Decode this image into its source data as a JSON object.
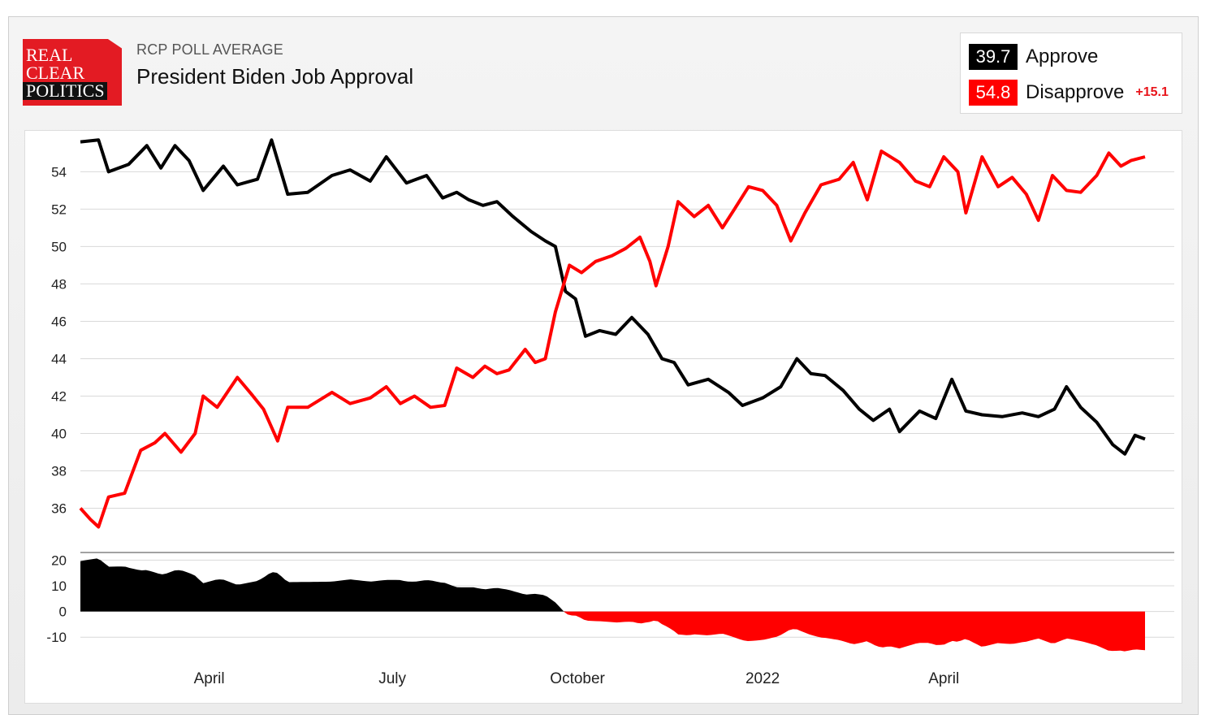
{
  "header": {
    "logo_lines": [
      "REAL",
      "CLEAR",
      "POLITICS"
    ],
    "subtitle": "RCP POLL AVERAGE",
    "title": "President Biden Job Approval"
  },
  "legend": {
    "approve": {
      "value": "39.7",
      "label": "Approve",
      "color": "#000000"
    },
    "disapprove": {
      "value": "54.8",
      "label": "Disapprove",
      "color": "#ff0000"
    },
    "spread": "+15.1"
  },
  "chart_data": [
    {
      "type": "line",
      "x_unit": "date",
      "x_range": [
        "2021-01-27",
        "2022-07-10"
      ],
      "ylim": [
        34.5,
        55.8
      ],
      "yticks": [
        36,
        38,
        40,
        42,
        44,
        46,
        48,
        50,
        52,
        54
      ],
      "grid": true,
      "series": [
        {
          "name": "Approve",
          "color": "#000000",
          "points": [
            [
              "2021-01-27",
              55.6
            ],
            [
              "2021-02-05",
              55.7
            ],
            [
              "2021-02-10",
              54.0
            ],
            [
              "2021-02-20",
              54.4
            ],
            [
              "2021-03-01",
              55.4
            ],
            [
              "2021-03-08",
              54.2
            ],
            [
              "2021-03-15",
              55.4
            ],
            [
              "2021-03-22",
              54.6
            ],
            [
              "2021-03-29",
              53.0
            ],
            [
              "2021-04-08",
              54.3
            ],
            [
              "2021-04-15",
              53.3
            ],
            [
              "2021-04-25",
              53.6
            ],
            [
              "2021-05-02",
              55.7
            ],
            [
              "2021-05-10",
              52.8
            ],
            [
              "2021-05-20",
              52.9
            ],
            [
              "2021-06-01",
              53.8
            ],
            [
              "2021-06-10",
              54.1
            ],
            [
              "2021-06-20",
              53.5
            ],
            [
              "2021-06-28",
              54.8
            ],
            [
              "2021-07-08",
              53.4
            ],
            [
              "2021-07-18",
              53.8
            ],
            [
              "2021-07-26",
              52.6
            ],
            [
              "2021-08-02",
              52.9
            ],
            [
              "2021-08-08",
              52.5
            ],
            [
              "2021-08-15",
              52.2
            ],
            [
              "2021-08-22",
              52.4
            ],
            [
              "2021-08-30",
              51.6
            ],
            [
              "2021-09-08",
              50.8
            ],
            [
              "2021-09-15",
              50.3
            ],
            [
              "2021-09-20",
              50.0
            ],
            [
              "2021-09-25",
              47.6
            ],
            [
              "2021-09-30",
              47.2
            ],
            [
              "2021-10-05",
              45.2
            ],
            [
              "2021-10-12",
              45.5
            ],
            [
              "2021-10-20",
              45.3
            ],
            [
              "2021-10-28",
              46.2
            ],
            [
              "2021-11-05",
              45.3
            ],
            [
              "2021-11-12",
              44.0
            ],
            [
              "2021-11-18",
              43.8
            ],
            [
              "2021-11-25",
              42.6
            ],
            [
              "2021-12-05",
              42.9
            ],
            [
              "2021-12-15",
              42.2
            ],
            [
              "2021-12-22",
              41.5
            ],
            [
              "2022-01-01",
              41.9
            ],
            [
              "2022-01-10",
              42.5
            ],
            [
              "2022-01-18",
              44.0
            ],
            [
              "2022-01-25",
              43.2
            ],
            [
              "2022-02-01",
              43.1
            ],
            [
              "2022-02-10",
              42.3
            ],
            [
              "2022-02-18",
              41.3
            ],
            [
              "2022-02-25",
              40.7
            ],
            [
              "2022-03-05",
              41.3
            ],
            [
              "2022-03-10",
              40.1
            ],
            [
              "2022-03-20",
              41.2
            ],
            [
              "2022-03-28",
              40.8
            ],
            [
              "2022-04-05",
              42.9
            ],
            [
              "2022-04-12",
              41.2
            ],
            [
              "2022-04-20",
              41.0
            ],
            [
              "2022-04-30",
              40.9
            ],
            [
              "2022-05-10",
              41.1
            ],
            [
              "2022-05-18",
              40.9
            ],
            [
              "2022-05-26",
              41.3
            ],
            [
              "2022-06-01",
              42.5
            ],
            [
              "2022-06-08",
              41.4
            ],
            [
              "2022-06-16",
              40.6
            ],
            [
              "2022-06-24",
              39.4
            ],
            [
              "2022-06-30",
              38.9
            ],
            [
              "2022-07-05",
              39.9
            ],
            [
              "2022-07-10",
              39.7
            ]
          ]
        },
        {
          "name": "Disapprove",
          "color": "#ff0000",
          "points": [
            [
              "2021-01-27",
              36.0
            ],
            [
              "2021-02-01",
              35.4
            ],
            [
              "2021-02-05",
              35.0
            ],
            [
              "2021-02-10",
              36.6
            ],
            [
              "2021-02-18",
              36.8
            ],
            [
              "2021-02-26",
              39.1
            ],
            [
              "2021-03-05",
              39.5
            ],
            [
              "2021-03-10",
              40.0
            ],
            [
              "2021-03-18",
              39.0
            ],
            [
              "2021-03-25",
              40.0
            ],
            [
              "2021-03-29",
              42.0
            ],
            [
              "2021-04-05",
              41.4
            ],
            [
              "2021-04-15",
              43.0
            ],
            [
              "2021-04-22",
              42.1
            ],
            [
              "2021-04-28",
              41.3
            ],
            [
              "2021-05-05",
              39.6
            ],
            [
              "2021-05-10",
              41.4
            ],
            [
              "2021-05-20",
              41.4
            ],
            [
              "2021-06-01",
              42.2
            ],
            [
              "2021-06-10",
              41.6
            ],
            [
              "2021-06-20",
              41.9
            ],
            [
              "2021-06-28",
              42.5
            ],
            [
              "2021-07-05",
              41.6
            ],
            [
              "2021-07-12",
              42.0
            ],
            [
              "2021-07-20",
              41.4
            ],
            [
              "2021-07-27",
              41.5
            ],
            [
              "2021-08-02",
              43.5
            ],
            [
              "2021-08-10",
              43.0
            ],
            [
              "2021-08-16",
              43.6
            ],
            [
              "2021-08-22",
              43.2
            ],
            [
              "2021-08-28",
              43.4
            ],
            [
              "2021-09-05",
              44.5
            ],
            [
              "2021-09-10",
              43.8
            ],
            [
              "2021-09-15",
              44.0
            ],
            [
              "2021-09-20",
              46.5
            ],
            [
              "2021-09-27",
              49.0
            ],
            [
              "2021-10-03",
              48.6
            ],
            [
              "2021-10-10",
              49.2
            ],
            [
              "2021-10-18",
              49.5
            ],
            [
              "2021-10-25",
              49.9
            ],
            [
              "2021-11-01",
              50.5
            ],
            [
              "2021-11-06",
              49.2
            ],
            [
              "2021-11-09",
              47.9
            ],
            [
              "2021-11-15",
              50.0
            ],
            [
              "2021-11-20",
              52.4
            ],
            [
              "2021-11-28",
              51.6
            ],
            [
              "2021-12-05",
              52.2
            ],
            [
              "2021-12-12",
              51.0
            ],
            [
              "2021-12-18",
              52.0
            ],
            [
              "2021-12-25",
              53.2
            ],
            [
              "2022-01-01",
              53.0
            ],
            [
              "2022-01-08",
              52.2
            ],
            [
              "2022-01-15",
              50.3
            ],
            [
              "2022-01-22",
              51.8
            ],
            [
              "2022-01-30",
              53.3
            ],
            [
              "2022-02-08",
              53.6
            ],
            [
              "2022-02-15",
              54.5
            ],
            [
              "2022-02-22",
              52.5
            ],
            [
              "2022-03-01",
              55.1
            ],
            [
              "2022-03-10",
              54.5
            ],
            [
              "2022-03-18",
              53.5
            ],
            [
              "2022-03-25",
              53.2
            ],
            [
              "2022-04-01",
              54.8
            ],
            [
              "2022-04-08",
              54.0
            ],
            [
              "2022-04-12",
              51.8
            ],
            [
              "2022-04-20",
              54.8
            ],
            [
              "2022-04-28",
              53.2
            ],
            [
              "2022-05-05",
              53.7
            ],
            [
              "2022-05-12",
              52.8
            ],
            [
              "2022-05-18",
              51.4
            ],
            [
              "2022-05-25",
              53.8
            ],
            [
              "2022-06-01",
              53.0
            ],
            [
              "2022-06-08",
              52.9
            ],
            [
              "2022-06-16",
              53.8
            ],
            [
              "2022-06-22",
              55.0
            ],
            [
              "2022-06-28",
              54.3
            ],
            [
              "2022-07-03",
              54.6
            ],
            [
              "2022-07-10",
              54.8
            ]
          ]
        }
      ]
    },
    {
      "type": "area",
      "x_unit": "date",
      "x_range": [
        "2021-01-27",
        "2022-07-10"
      ],
      "ylim": [
        -15,
        22
      ],
      "yticks": [
        20,
        10,
        0,
        -10
      ],
      "xtick_labels": [
        {
          "date": "2021-04-01",
          "label": "April"
        },
        {
          "date": "2021-07-01",
          "label": "July"
        },
        {
          "date": "2021-10-01",
          "label": "October"
        },
        {
          "date": "2022-01-01",
          "label": "2022"
        },
        {
          "date": "2022-04-01",
          "label": "April"
        }
      ],
      "positive_color": "#000000",
      "negative_color": "#ff0000"
    }
  ]
}
